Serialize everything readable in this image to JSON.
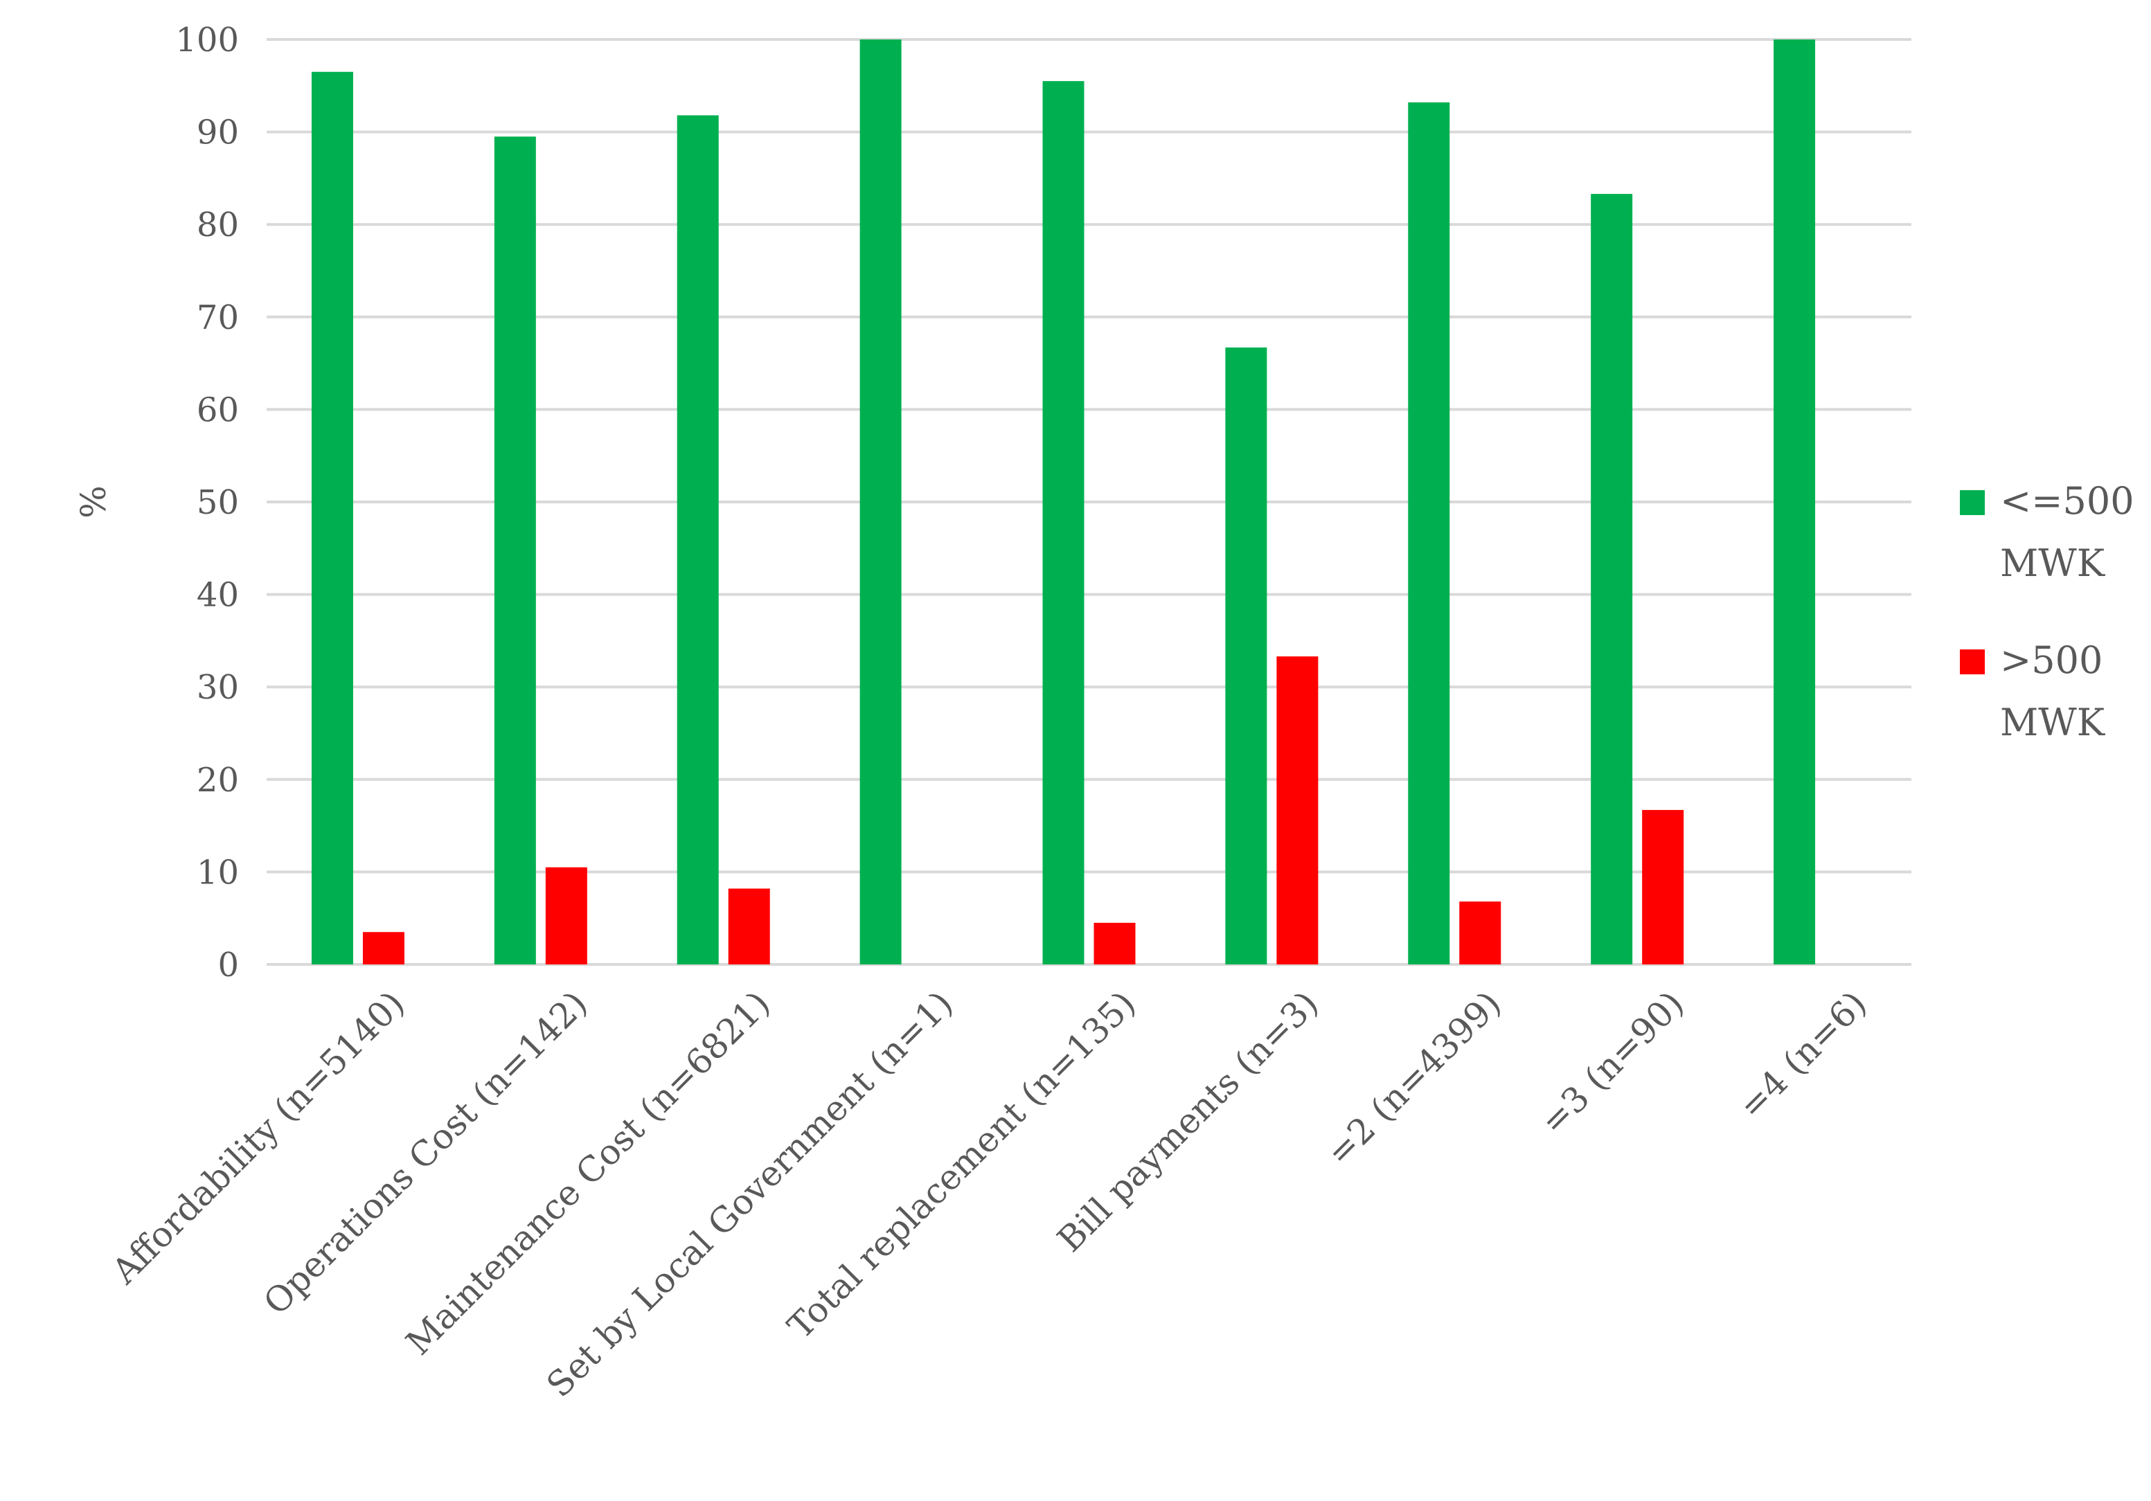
{
  "chart_data": {
    "type": "bar",
    "title": "",
    "xlabel": "",
    "ylabel": "%",
    "ylim": [
      0,
      100
    ],
    "yticks": [
      0,
      10,
      20,
      30,
      40,
      50,
      60,
      70,
      80,
      90,
      100
    ],
    "grid": true,
    "legend_position": "right",
    "categories": [
      "Affordability (n=5140)",
      "Operations Cost (n=142)",
      "Maintenance Cost (n=6821)",
      "Set by Local Government (n=1)",
      "Total replacement (n=135)",
      "Bill payments (n=3)",
      "=2 (n=4399)",
      "=3 (n=90)",
      "=4 (n=6)"
    ],
    "series": [
      {
        "name": "<=500 MWK",
        "legend_lines": [
          "<=500",
          "MWK"
        ],
        "color": "#00B050",
        "values": [
          96.5,
          89.5,
          91.8,
          100,
          95.5,
          66.7,
          93.2,
          83.3,
          100
        ]
      },
      {
        "name": ">500 MWK",
        "legend_lines": [
          ">500",
          "MWK"
        ],
        "color": "#FF0000",
        "values": [
          3.5,
          10.5,
          8.2,
          0,
          4.5,
          33.3,
          6.8,
          16.7,
          0
        ]
      }
    ]
  }
}
